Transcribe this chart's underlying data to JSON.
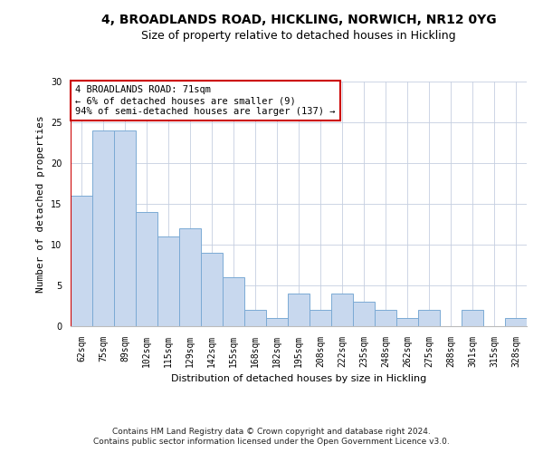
{
  "title1": "4, BROADLANDS ROAD, HICKLING, NORWICH, NR12 0YG",
  "title2": "Size of property relative to detached houses in Hickling",
  "xlabel": "Distribution of detached houses by size in Hickling",
  "ylabel": "Number of detached properties",
  "categories": [
    "62sqm",
    "75sqm",
    "89sqm",
    "102sqm",
    "115sqm",
    "129sqm",
    "142sqm",
    "155sqm",
    "168sqm",
    "182sqm",
    "195sqm",
    "208sqm",
    "222sqm",
    "235sqm",
    "248sqm",
    "262sqm",
    "275sqm",
    "288sqm",
    "301sqm",
    "315sqm",
    "328sqm"
  ],
  "values": [
    16,
    24,
    24,
    14,
    11,
    12,
    9,
    6,
    2,
    1,
    4,
    2,
    4,
    3,
    2,
    1,
    2,
    0,
    2,
    0,
    1
  ],
  "bar_color": "#c8d8ee",
  "bar_edge_color": "#7baad4",
  "annotation_text": "4 BROADLANDS ROAD: 71sqm\n← 6% of detached houses are smaller (9)\n94% of semi-detached houses are larger (137) →",
  "annotation_box_color": "white",
  "annotation_box_edge_color": "#cc0000",
  "ylim": [
    0,
    30
  ],
  "yticks": [
    0,
    5,
    10,
    15,
    20,
    25,
    30
  ],
  "footer1": "Contains HM Land Registry data © Crown copyright and database right 2024.",
  "footer2": "Contains public sector information licensed under the Open Government Licence v3.0.",
  "title1_fontsize": 10,
  "title2_fontsize": 9,
  "axis_label_fontsize": 8,
  "tick_fontsize": 7,
  "annotation_fontsize": 7.5,
  "footer_fontsize": 6.5,
  "ylabel_fontsize": 8
}
